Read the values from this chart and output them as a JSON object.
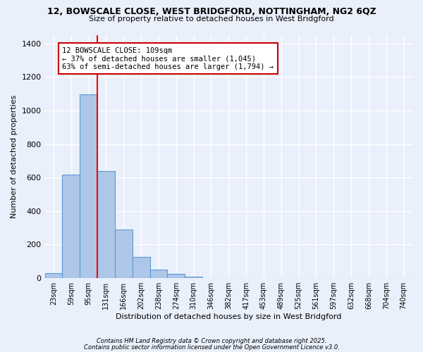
{
  "title1": "12, BOWSCALE CLOSE, WEST BRIDGFORD, NOTTINGHAM, NG2 6QZ",
  "title2": "Size of property relative to detached houses in West Bridgford",
  "xlabel": "Distribution of detached houses by size in West Bridgford",
  "ylabel": "Number of detached properties",
  "categories": [
    "23sqm",
    "59sqm",
    "95sqm",
    "131sqm",
    "166sqm",
    "202sqm",
    "238sqm",
    "274sqm",
    "310sqm",
    "346sqm",
    "382sqm",
    "417sqm",
    "453sqm",
    "489sqm",
    "525sqm",
    "561sqm",
    "597sqm",
    "632sqm",
    "668sqm",
    "704sqm",
    "740sqm"
  ],
  "values": [
    30,
    620,
    1095,
    640,
    290,
    125,
    50,
    25,
    10,
    0,
    0,
    0,
    0,
    0,
    0,
    0,
    0,
    0,
    0,
    0,
    0
  ],
  "bar_color": "#aec6e8",
  "bar_edge_color": "#5b9bd5",
  "red_line_x": 2.5,
  "annotation_text": "12 BOWSCALE CLOSE: 109sqm\n← 37% of detached houses are smaller (1,045)\n63% of semi-detached houses are larger (1,794) →",
  "annotation_box_color": "#ffffff",
  "annotation_box_edge_color": "#cc0000",
  "bg_color": "#eaf0fb",
  "plot_bg_color": "#eaf0fb",
  "grid_color": "#ffffff",
  "footer1": "Contains HM Land Registry data © Crown copyright and database right 2025.",
  "footer2": "Contains public sector information licensed under the Open Government Licence v3.0.",
  "ylim": [
    0,
    1450
  ],
  "yticks": [
    0,
    200,
    400,
    600,
    800,
    1000,
    1200,
    1400
  ]
}
